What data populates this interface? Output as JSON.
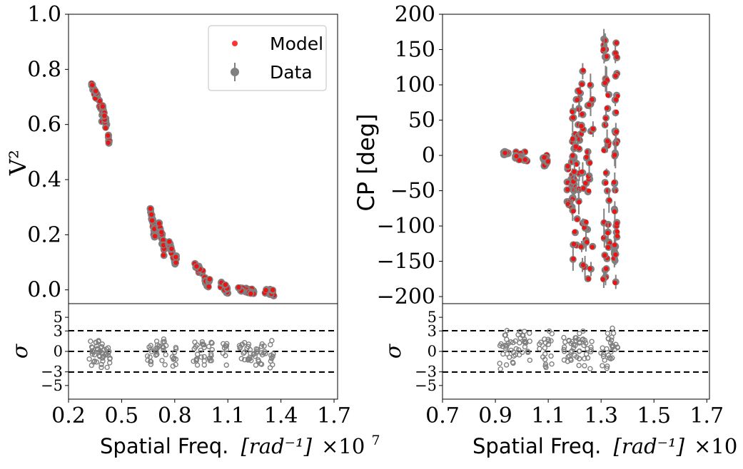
{
  "chart_data": [
    {
      "type": "scatter",
      "panel": "visibility",
      "ylabel": "V²",
      "ylim": [
        -0.05,
        1.0
      ],
      "yticks": [
        0.0,
        0.2,
        0.4,
        0.6,
        0.8,
        1.0
      ],
      "ytick_labels": [
        "0.0",
        "0.2",
        "0.4",
        "0.6",
        "0.8",
        "1.0"
      ],
      "xlim": [
        0.2,
        1.72
      ],
      "legend": {
        "placement": "top-right",
        "entries": [
          {
            "label": "Model",
            "color": "#ff0000"
          },
          {
            "label": "Data",
            "color": "#808080"
          }
        ]
      },
      "clusters": [
        {
          "x": [
            0.33,
            0.39
          ],
          "y": [
            0.62,
            0.76
          ]
        },
        {
          "x": [
            0.39,
            0.43
          ],
          "y": [
            0.52,
            0.68
          ]
        },
        {
          "x": [
            0.66,
            0.69
          ],
          "y": [
            0.17,
            0.31
          ]
        },
        {
          "x": [
            0.71,
            0.74
          ],
          "y": [
            0.13,
            0.25
          ]
        },
        {
          "x": [
            0.76,
            0.81
          ],
          "y": [
            0.08,
            0.19
          ]
        },
        {
          "x": [
            0.91,
            1.0
          ],
          "y": [
            0.0,
            0.11
          ]
        },
        {
          "x": [
            1.06,
            1.1
          ],
          "y": [
            0.0,
            0.03
          ]
        },
        {
          "x": [
            1.16,
            1.25
          ],
          "y": [
            -0.005,
            0.015
          ]
        },
        {
          "x": [
            1.31,
            1.36
          ],
          "y": [
            -0.005,
            0.008
          ]
        }
      ]
    },
    {
      "type": "scatter",
      "panel": "closure_phase",
      "ylabel": "CP [deg]",
      "ylim": [
        -210,
        200
      ],
      "yticks": [
        -200,
        -150,
        -100,
        -50,
        0,
        50,
        100,
        150,
        200
      ],
      "ytick_labels": [
        "−200",
        "−150",
        "−100",
        "−50",
        "0",
        "50",
        "100",
        "150",
        "200"
      ],
      "xlim": [
        0.7,
        1.71
      ],
      "clusters": [
        {
          "x": [
            0.93,
            0.95
          ],
          "y": [
            1,
            6
          ]
        },
        {
          "x": [
            0.97,
            1.02
          ],
          "y": [
            -10,
            5
          ]
        },
        {
          "x": [
            1.08,
            1.1
          ],
          "y": [
            -15,
            0
          ]
        },
        {
          "x": [
            1.17,
            1.2
          ],
          "y": [
            -70,
            0
          ]
        },
        {
          "x": [
            1.19,
            1.22
          ],
          "y": [
            -150,
            95
          ]
        },
        {
          "x": [
            1.22,
            1.27
          ],
          "y": [
            -175,
            125
          ]
        },
        {
          "x": [
            1.31,
            1.33
          ],
          "y": [
            -180,
            180
          ]
        },
        {
          "x": [
            1.35,
            1.36
          ],
          "y": [
            -180,
            180
          ]
        }
      ]
    }
  ],
  "residual_panels": {
    "ylabel": "σ",
    "yticks": [
      -5,
      -3,
      0,
      3,
      5
    ],
    "ytick_labels": [
      "−5",
      "−3",
      "0",
      "3",
      "5"
    ],
    "ylim": [
      -7,
      7
    ],
    "reference_lines": [
      3,
      0,
      -3
    ],
    "left_x": [
      0.33,
      0.36,
      0.38,
      0.4,
      0.42,
      0.66,
      0.7,
      0.74,
      0.8,
      0.92,
      0.96,
      1.0,
      1.08,
      1.18,
      1.22,
      1.26,
      1.3,
      1.35
    ],
    "left_sigma_range": [
      -3.0,
      2.2
    ],
    "right_x": [
      0.93,
      0.95,
      0.98,
      1.0,
      1.02,
      1.08,
      1.1,
      1.17,
      1.19,
      1.21,
      1.23,
      1.25,
      1.31,
      1.33,
      1.35
    ],
    "right_sigma_range": [
      -2.8,
      4.0
    ]
  },
  "xaxis": {
    "label_prefix": "Spatial Freq.",
    "label_unit": "[rad⁻¹]",
    "label_scale": "×10",
    "label_exponent": "7",
    "left_ticks": [
      0.2,
      0.5,
      0.8,
      1.1,
      1.4,
      1.7
    ],
    "left_tick_labels": [
      "0.2",
      "0.5",
      "0.8",
      "1.1",
      "1.4",
      "1.7"
    ],
    "right_ticks": [
      0.7,
      0.9,
      1.1,
      1.3,
      1.5,
      1.7
    ],
    "right_tick_labels": [
      "0.7",
      "0.9",
      "1.1",
      "1.3",
      "1.5",
      "1.7"
    ]
  },
  "colors": {
    "model": "#ff0000",
    "data": "#808080"
  }
}
